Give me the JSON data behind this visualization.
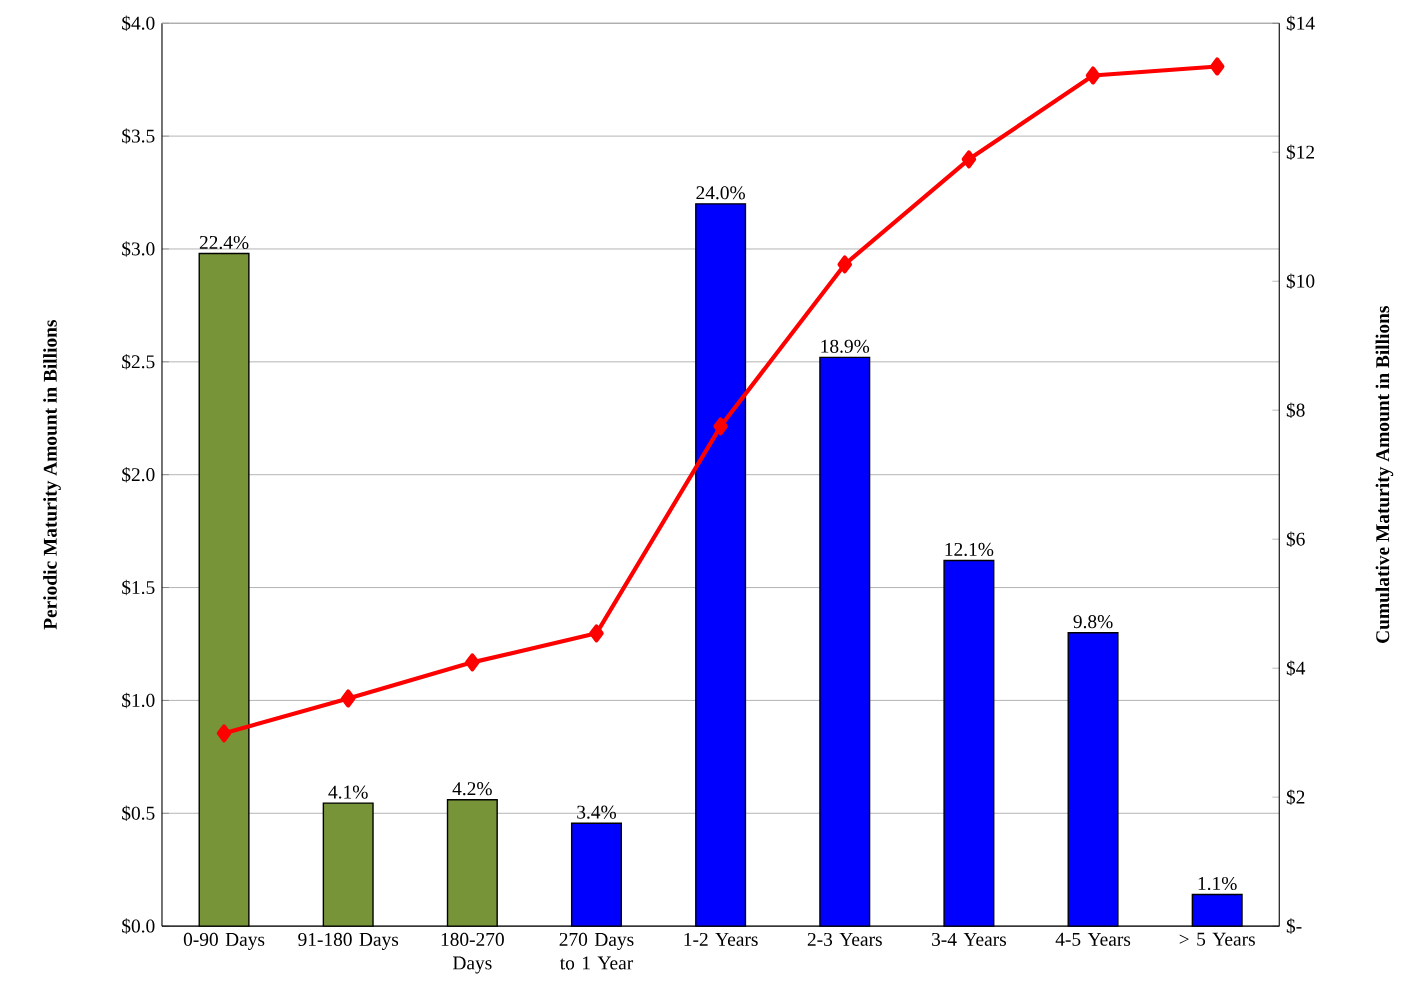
{
  "chart_data": {
    "type": "bar",
    "ylabel": "Periodic Maturity Amount in Billions",
    "y2label": "Cumulative Maturity Amount in Billions",
    "categories": [
      "0-90 Days",
      "91-180 Days",
      "180-270 Days",
      "270 Days to 1 Year",
      "1-2 Years",
      "2-3 Years",
      "3-4 Years",
      "4-5 Years",
      "> 5 Years"
    ],
    "series": [
      {
        "values": [
          2.98,
          0.545,
          0.56,
          0.456,
          3.2,
          2.52,
          1.62,
          1.3,
          0.14
        ],
        "colors": [
          "#779438",
          "#779438",
          "#779438",
          "#0000ff",
          "#0000ff",
          "#0000ff",
          "#0000ff",
          "#0000ff",
          "#0000ff"
        ]
      },
      {
        "type": "line",
        "axis": "y2",
        "color": "#ff0000",
        "marker": "diamond",
        "line_style": "solid",
        "values": [
          2.99,
          3.53,
          4.09,
          4.54,
          7.75,
          10.26,
          11.89,
          13.19,
          13.33
        ]
      }
    ],
    "ylim": [
      0,
      4
    ],
    "yticks": [
      {
        "value": 0,
        "label": "$0.0"
      },
      {
        "value": 0.5,
        "label": "$0.5"
      },
      {
        "value": 1,
        "label": "$1.0"
      },
      {
        "value": 1.5,
        "label": "$1.5"
      },
      {
        "value": 2,
        "label": "$2.0"
      },
      {
        "value": 2.5,
        "label": "$2.5"
      },
      {
        "value": 3,
        "label": "$3.0"
      },
      {
        "value": 3.5,
        "label": "$3.5"
      },
      {
        "value": 4,
        "label": "$4.0"
      }
    ],
    "y2lim": [
      0,
      14
    ],
    "y2ticks": [
      {
        "value": 0,
        "label": "$-"
      },
      {
        "value": 2,
        "label": "$2"
      },
      {
        "value": 4,
        "label": "$4"
      },
      {
        "value": 6,
        "label": "$6"
      },
      {
        "value": 8,
        "label": "$8"
      },
      {
        "value": 10,
        "label": "$10"
      },
      {
        "value": 12,
        "label": "$12"
      },
      {
        "value": 14,
        "label": "$14"
      }
    ],
    "annotations": [
      {
        "text": "22.4%",
        "x": "0-90 Days",
        "y": 2.98
      },
      {
        "text": "4.1%",
        "x": "91-180 Days",
        "y": 0.545
      },
      {
        "text": "4.2%",
        "x": "180-270 Days",
        "y": 0.56
      },
      {
        "text": "3.4%",
        "x": "270 Days to 1 Year",
        "y": 0.456
      },
      {
        "text": "24.0%",
        "x": "1-2 Years",
        "y": 3.2
      },
      {
        "text": "18.9%",
        "x": "2-3 Years",
        "y": 2.52
      },
      {
        "text": "12.1%",
        "x": "3-4 Years",
        "y": 1.62
      },
      {
        "text": "9.8%",
        "x": "4-5 Years",
        "y": 1.3
      },
      {
        "text": "1.1%",
        "x": "> 5 Years",
        "y": 0.14
      }
    ],
    "grid": "y"
  }
}
